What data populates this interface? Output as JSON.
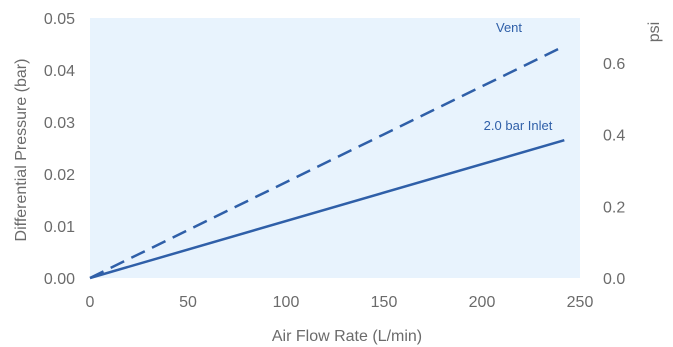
{
  "chart_data": {
    "type": "line",
    "xlabel": "Air Flow Rate (L/min)",
    "ylabel": "Differential Pressure (bar)",
    "y2label": "psi",
    "xlim": [
      0,
      250
    ],
    "ylim": [
      0,
      0.05
    ],
    "y2lim": [
      0,
      0.725
    ],
    "x_ticks": [
      "0",
      "50",
      "100",
      "150",
      "200",
      "250"
    ],
    "y_ticks": [
      "0.00",
      "0.01",
      "0.02",
      "0.03",
      "0.04",
      "0.05"
    ],
    "y2_ticks": [
      "0.0",
      "0.2",
      "0.4",
      "0.6"
    ],
    "grid": false,
    "series": [
      {
        "name": "Vent",
        "style": "dashed",
        "color": "#2f5fa8",
        "x": [
          0,
          242
        ],
        "y": [
          0,
          0.0446
        ]
      },
      {
        "name": "2.0 bar Inlet",
        "style": "solid",
        "color": "#2f5fa8",
        "x": [
          0,
          242
        ],
        "y": [
          0,
          0.0265
        ]
      }
    ]
  },
  "colors": {
    "plot_background": "#e8f3fd",
    "line": "#2f5fa8",
    "text": "#6b6b6b"
  }
}
